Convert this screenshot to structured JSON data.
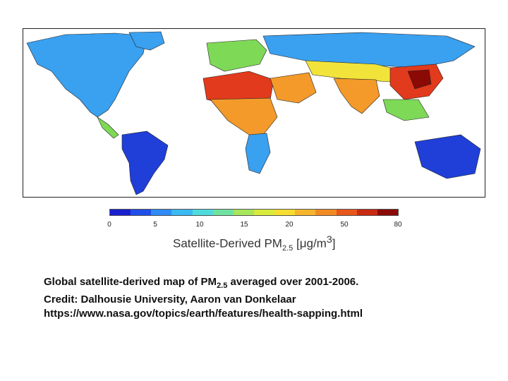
{
  "map": {
    "colors": {
      "ocean": "#ffffff",
      "low": "#1f3fd8",
      "mid": "#3aa0f0",
      "green": "#7ed957",
      "yellow": "#f2e33a",
      "orange": "#f39a2a",
      "red": "#e23a1c",
      "dark_red": "#8b0a05"
    }
  },
  "colorbar": {
    "colors": [
      "#1a1fd0",
      "#1f4fe8",
      "#2f8af5",
      "#3ab9f2",
      "#4fdadc",
      "#70e2a0",
      "#a6e65a",
      "#d8ea3c",
      "#f6dd2f",
      "#f7b52c",
      "#f28a24",
      "#e7561a",
      "#c82a12",
      "#8b0a05"
    ],
    "ticks": [
      "0",
      "5",
      "10",
      "15",
      "20",
      "50",
      "80"
    ],
    "label_main": "Satellite-Derived PM",
    "label_sub": "2.5",
    "label_unit": "[μg/m",
    "label_sup": "3",
    "label_close": "]"
  },
  "caption": {
    "line1_a": "Global satellite-derived map of PM",
    "line1_sub": "2.5",
    "line1_b": " averaged over 2001-2006.",
    "line2": "Credit: Dalhousie University, Aaron van Donkelaar",
    "line3": "https://www.nasa.gov/topics/earth/features/health-sapping.html"
  }
}
